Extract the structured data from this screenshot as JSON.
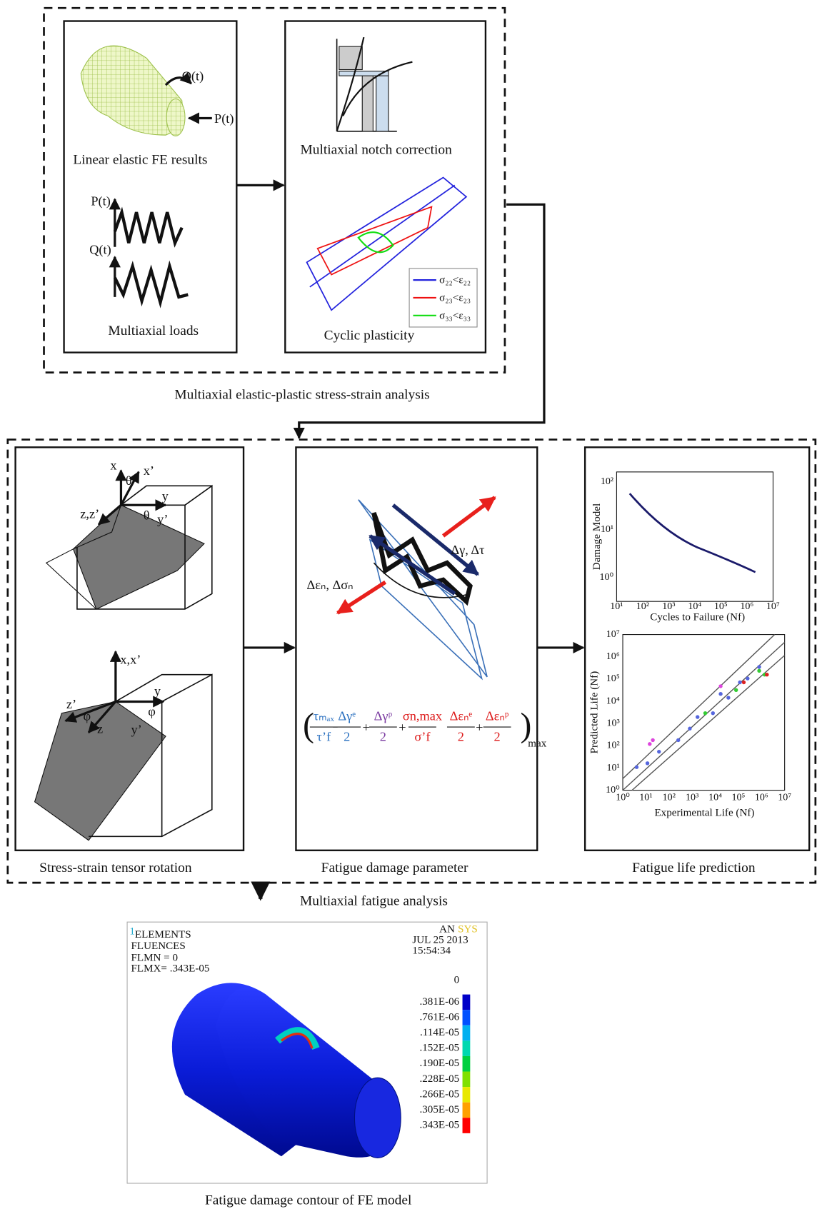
{
  "stage1": {
    "caption": "Multiaxial elastic-plastic stress-strain analysis",
    "fe_panel": {
      "load_q": "Q(t)",
      "load_p": "P(t)",
      "caption": "Linear elastic FE results",
      "signal_p": "P(t)",
      "signal_q": "Q(t)",
      "caption2": "Multiaxial loads"
    },
    "notch_panel": {
      "caption": "Multiaxial notch correction",
      "caption2": "Cyclic plasticity",
      "legend": [
        "σ₂₂<ε₂₂",
        "σ₂₃<ε₂₃",
        "σ₃₃<ε₃₃"
      ]
    }
  },
  "stage2": {
    "caption": "Multiaxial fatigue analysis",
    "rotation_panel": {
      "caption": "Stress-strain tensor rotation",
      "labels": [
        "x",
        "x’",
        "θ",
        "y",
        "z,z’",
        "θ",
        "y’",
        "x,x’",
        "y",
        "z’",
        "φ",
        "z",
        "φ",
        "y’"
      ]
    },
    "damage_panel": {
      "caption": "Fatigue damage parameter",
      "shear_label": "Δγ, Δτ",
      "normal_label": "Δεₙ, Δσₙ",
      "formula": {
        "fractions": [
          {
            "num": "τₘₐₓ",
            "den": "τ’f"
          },
          {
            "num": "Δγᵉ",
            "den": "2"
          },
          {
            "num": "Δγᵖ",
            "den": "2"
          },
          {
            "num": "σn,max",
            "den": "σ’f"
          },
          {
            "num": "Δεₙᵉ",
            "den": "2"
          },
          {
            "num": "Δεₙᵖ",
            "den": "2"
          }
        ],
        "operators": [
          "+",
          "+",
          "+"
        ],
        "subscript": "max"
      }
    },
    "life_panel": {
      "caption": "Fatigue life prediction",
      "chart1": {
        "ylabel": "Damage Model",
        "xlabel": "Cycles to Failure (Nf)",
        "xticks": [
          "10¹",
          "10²",
          "10³",
          "10⁴",
          "10⁵",
          "10⁶",
          "10⁷"
        ],
        "yticks": [
          "10²",
          "10¹",
          "10⁰"
        ]
      },
      "chart2": {
        "ylabel": "Predicted Life (Nf)",
        "xlabel": "Experimental Life (Nf)",
        "xticks": [
          "10⁰",
          "10¹",
          "10²",
          "10³",
          "10⁴",
          "10⁵",
          "10⁶",
          "10⁷"
        ],
        "yticks": [
          "10⁷",
          "10⁶",
          "10⁵",
          "10⁴",
          "10³",
          "10²",
          "10¹",
          "10⁰"
        ]
      }
    }
  },
  "stage3": {
    "caption": "Fatigue damage contour of FE model",
    "screen": {
      "index": "1",
      "lines": [
        "ELEMENTS",
        "FLUENCES",
        "FLMN = 0",
        "FLMX= .343E-05"
      ],
      "brand_a": "AN",
      "brand_b": "SYS",
      "date": "JUL  25  2013",
      "time": "15:54:34",
      "scale": [
        "0",
        ".381E-06",
        ".761E-06",
        ".114E-05",
        ".152E-05",
        ".190E-05",
        ".228E-05",
        ".266E-05",
        ".305E-05",
        ".343E-05"
      ]
    }
  }
}
